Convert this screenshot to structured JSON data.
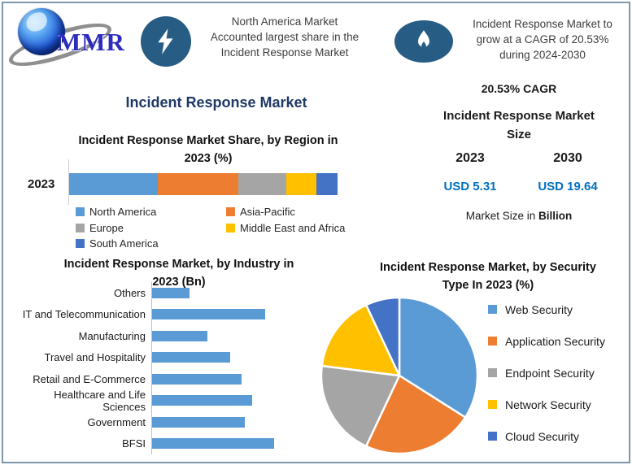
{
  "page": {
    "border_color": "#7C97AD",
    "background": "#FFFFFF"
  },
  "logo": {
    "text": "MMR",
    "accent_blue": "#2D2DBD"
  },
  "callouts": [
    {
      "icon": "lightning-icon",
      "icon_bg": "#275D84",
      "text": "North America Market\nAccounted largest share in the\nIncident Response Market"
    },
    {
      "icon": "flame-icon",
      "icon_bg": "#275D84",
      "text": "Incident Response Market to\ngrow at a CAGR of 20.53%\nduring 2024-2030"
    }
  ],
  "main_title": "Incident Response Market",
  "market_size_panel": {
    "cagr_label": "20.53% CAGR",
    "title": "Incident Response Market\nSize",
    "years": [
      "2023",
      "2030"
    ],
    "values": [
      "USD 5.31",
      "USD 19.64"
    ],
    "value_color": "#0070C0",
    "footnote_prefix": "Market Size in ",
    "footnote_bold": "Billion"
  },
  "chart_data": [
    {
      "type": "bar",
      "subtype": "stacked-horizontal",
      "title": "Incident Response Market Share, by Region in\n2023 (%)",
      "categories": [
        "2023"
      ],
      "series": [
        {
          "name": "North America",
          "color": "#5B9BD5",
          "values": [
            33
          ]
        },
        {
          "name": "Asia-Pacific",
          "color": "#ED7D31",
          "values": [
            30
          ]
        },
        {
          "name": "Europe",
          "color": "#A5A5A5",
          "values": [
            18
          ]
        },
        {
          "name": "Middle East and Africa",
          "color": "#FFC000",
          "values": [
            11
          ]
        },
        {
          "name": "South America",
          "color": "#4472C4",
          "values": [
            8
          ]
        }
      ],
      "unit": "%",
      "legend_position": "bottom"
    },
    {
      "type": "bar",
      "subtype": "horizontal",
      "title": "Incident Response Market, by Industry in\n2023 (Bn)",
      "categories": [
        "Others",
        "IT and Telecommunication",
        "Manufacturing",
        "Travel and Hospitality",
        "Retail and E-Commerce",
        "Healthcare and Life Sciences",
        "Government",
        "BFSI"
      ],
      "values": [
        0.29,
        0.88,
        0.43,
        0.61,
        0.7,
        0.78,
        0.72,
        0.95
      ],
      "unit": "Bn",
      "xlim": [
        0,
        1.3
      ],
      "bar_color": "#5B9BD5",
      "grid": false
    },
    {
      "type": "pie",
      "title": "Incident Response Market, by Security\nType In 2023 (%)",
      "labels": [
        "Web Security",
        "Application Security",
        "Endpoint Security",
        "Network Security",
        "Cloud Security"
      ],
      "values": [
        34,
        23,
        20,
        16,
        7
      ],
      "colors": [
        "#5B9BD5",
        "#ED7D31",
        "#A5A5A5",
        "#FFC000",
        "#4472C4"
      ],
      "unit": "%",
      "start_angle": 0,
      "legend_position": "right"
    }
  ]
}
